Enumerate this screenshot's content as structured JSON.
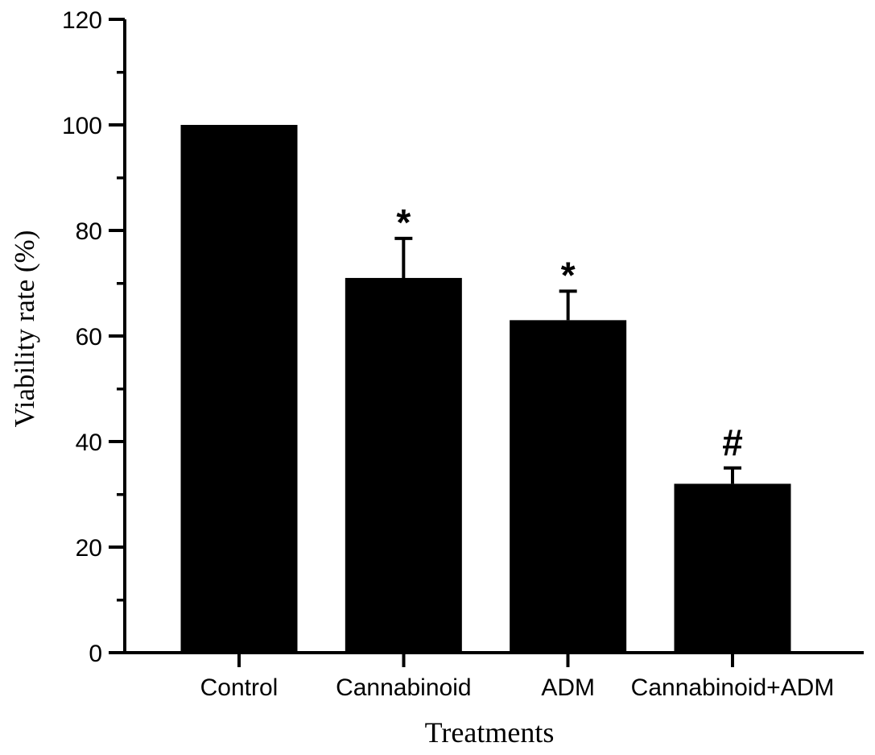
{
  "figure": {
    "background_color": "#ffffff",
    "ink_color": "#000000"
  },
  "chart_data": {
    "type": "bar",
    "title": "",
    "xlabel": "Treatments",
    "ylabel": "Viability rate (%)",
    "categories": [
      "Control",
      "Cannabinoid",
      "ADM",
      "Cannabinoid+ADM"
    ],
    "series": [
      {
        "name": "Viability rate",
        "values": [
          100,
          71,
          63,
          32
        ],
        "errors_plus": [
          0,
          7.5,
          5.5,
          3
        ],
        "annotations": [
          "",
          "*",
          "*",
          "#"
        ]
      }
    ],
    "bar_color": "#000000",
    "error_bar_color": "#000000",
    "ylim": [
      0,
      120
    ],
    "yticks_major": [
      0,
      20,
      40,
      60,
      80,
      100,
      120
    ],
    "yticks_minor": [
      10,
      30,
      50,
      70,
      90,
      110
    ],
    "grid": false,
    "legend": false,
    "frame": "left-and-bottom-axes-only"
  }
}
